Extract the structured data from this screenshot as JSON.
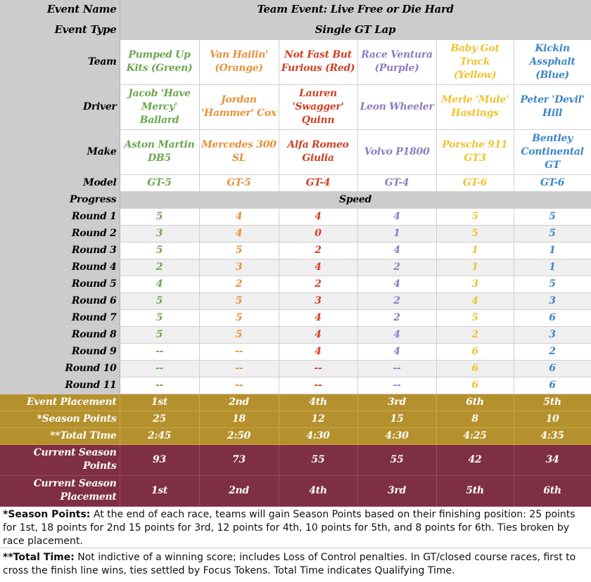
{
  "event_name": {
    "label": "Event Name",
    "value": "Team Event: Live Free or Die Hard"
  },
  "event_type": {
    "label": "Event Type",
    "value": "Single GT Lap"
  },
  "row_labels": {
    "team": "Team",
    "driver": "Driver",
    "make": "Make",
    "model": "Model",
    "progress": "Progress",
    "speed": "Speed"
  },
  "teams": [
    {
      "team": "Pumped Up Kits (Green)",
      "driver": "Jacob 'Have Mercy' Ballard",
      "make": "Aston Martin DB5",
      "model": "GT-5",
      "color": "#6aa84f"
    },
    {
      "team": "Van Hailin' (Orange)",
      "driver": "Jordan 'Hammer' Cox",
      "make": "Mercedes 300 SL",
      "model": "GT-5",
      "color": "#e69138"
    },
    {
      "team": "Not Fast But Furious (Red)",
      "driver": "Lauren 'Swagger' Quinn",
      "make": "Alfa Romeo Giulia",
      "model": "GT-4",
      "color": "#cc4125"
    },
    {
      "team": "Race Ventura (Purple)",
      "driver": "Leon Wheeler",
      "make": "Volvo P1800",
      "model": "GT-4",
      "color": "#8e7cc3"
    },
    {
      "team": "Baby Got Track (Yellow)",
      "driver": "Merle 'Mule' Hastings",
      "make": "Porsche 911 GT3",
      "model": "GT-6",
      "color": "#f1c232"
    },
    {
      "team": "Kickin Assphalt (Blue)",
      "driver": "Peter 'Devil' Hill",
      "make": "Bentley Continental GT",
      "model": "GT-6",
      "color": "#3d85c6"
    }
  ],
  "rounds": [
    {
      "label": "Round 1",
      "values": [
        "5",
        "4",
        "4",
        "4",
        "5",
        "5"
      ]
    },
    {
      "label": "Round 2",
      "values": [
        "3",
        "4",
        "0",
        "1",
        "5",
        "5"
      ]
    },
    {
      "label": "Round 3",
      "values": [
        "5",
        "5",
        "2",
        "4",
        "1",
        "1"
      ]
    },
    {
      "label": "Round 4",
      "values": [
        "2",
        "3",
        "4",
        "2",
        "1",
        "1"
      ]
    },
    {
      "label": "Round 5",
      "values": [
        "4",
        "2",
        "2",
        "4",
        "3",
        "5"
      ]
    },
    {
      "label": "Round 6",
      "values": [
        "5",
        "5",
        "3",
        "2",
        "4",
        "3"
      ]
    },
    {
      "label": "Round 7",
      "values": [
        "5",
        "5",
        "4",
        "2",
        "5",
        "6"
      ]
    },
    {
      "label": "Round 8",
      "values": [
        "5",
        "5",
        "4",
        "4",
        "2",
        "3"
      ]
    },
    {
      "label": "Round 9",
      "values": [
        "--",
        "--",
        "4",
        "4",
        "6",
        "2"
      ]
    },
    {
      "label": "Round 10",
      "values": [
        "--",
        "--",
        "--",
        "--",
        "6",
        "6"
      ]
    },
    {
      "label": "Round 11",
      "values": [
        "--",
        "--",
        "--",
        "--",
        "6",
        "6"
      ]
    }
  ],
  "results": [
    {
      "label": "Event Placement",
      "values": [
        "1st",
        "2nd",
        "4th",
        "3rd",
        "6th",
        "5th"
      ]
    },
    {
      "label": "*Season Points",
      "values": [
        "25",
        "18",
        "12",
        "15",
        "8",
        "10"
      ]
    },
    {
      "label": "**Total Time",
      "values": [
        "2:45",
        "2:50",
        "4:30",
        "4:30",
        "4:25",
        "4:35"
      ]
    }
  ],
  "season": [
    {
      "label": "Current Season Points",
      "values": [
        "93",
        "73",
        "55",
        "55",
        "42",
        "34"
      ]
    },
    {
      "label": "Current Season Placement",
      "values": [
        "1st",
        "2nd",
        "4th",
        "3rd",
        "5th",
        "6th"
      ]
    }
  ],
  "notes": {
    "season_points_title": "*Season Points:",
    "season_points_text": " At the end of each race, teams will gain Season Points based on their finishing position: 25 points for 1st, 18 points for 2nd 15 points for 3rd, 12 points for 4th, 10 points for 5th, and 8 points for 6th. Ties broken by race placement.",
    "total_time_title": "**Total Time:",
    "total_time_text": " Not indictive of a winning score; includes Loss of Control penalties. In GT/closed course races, first to cross the finish line wins, ties settled by Focus Tokens. Total Time indicates Qualifying Time."
  },
  "colors": {
    "label_bg": "#cccccc",
    "gold_band": "#b5912d",
    "maroon_band": "#7f2f45"
  }
}
